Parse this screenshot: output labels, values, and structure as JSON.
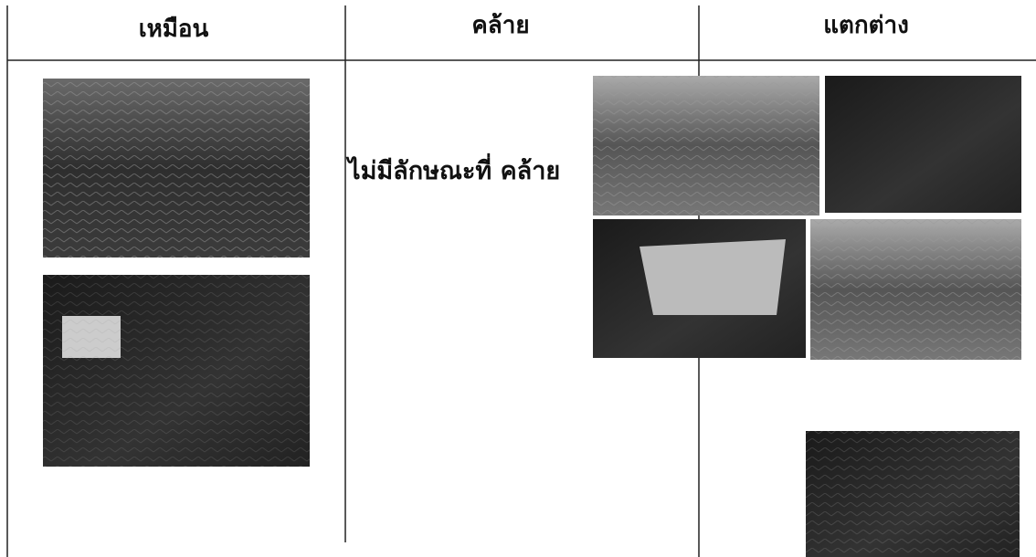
{
  "table": {
    "headers": [
      "เหมือน",
      "คล้าย",
      "แตกต่าง"
    ],
    "rows": [
      [
        "ไม่มีลักษณะที่ คล้าย"
      ]
    ]
  }
}
